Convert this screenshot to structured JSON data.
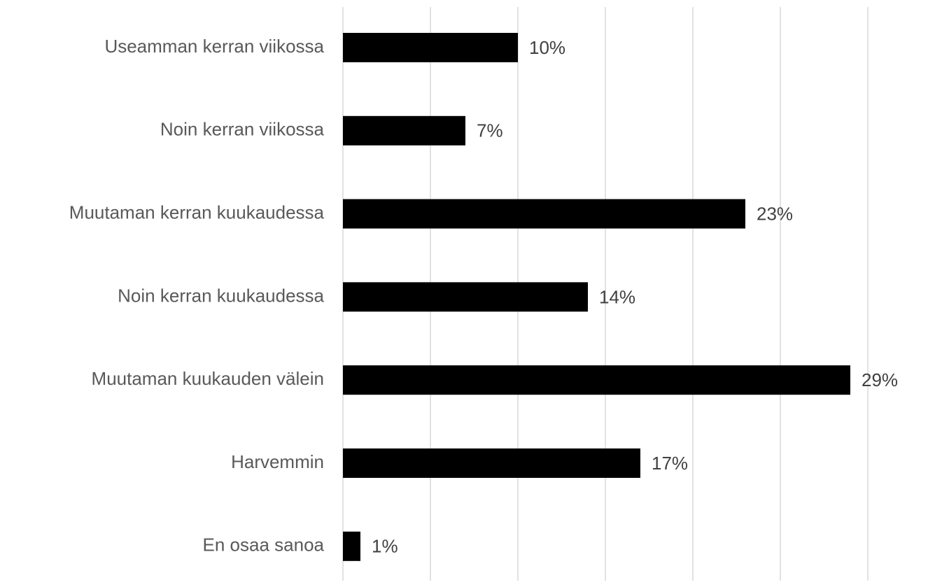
{
  "chart_data": {
    "type": "bar",
    "orientation": "horizontal",
    "categories": [
      "Useamman kerran viikossa",
      "Noin kerran viikossa",
      "Muutaman kerran kuukaudessa",
      "Noin kerran kuukaudessa",
      "Muutaman kuukauden välein",
      "Harvemmin",
      "En osaa sanoa"
    ],
    "values": [
      10,
      7,
      23,
      14,
      29,
      17,
      1
    ],
    "value_labels": [
      "10%",
      "7%",
      "23%",
      "14%",
      "29%",
      "17%",
      "1%"
    ],
    "color": "#000000",
    "xlim": [
      0,
      30
    ],
    "xticks": [
      0,
      5,
      10,
      15,
      20,
      25,
      30
    ],
    "grid": true
  }
}
